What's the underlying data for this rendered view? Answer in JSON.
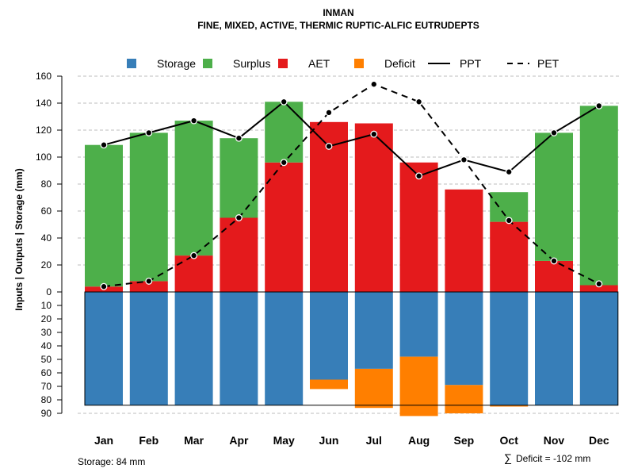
{
  "chart_data": {
    "type": "bar",
    "title": "INMAN",
    "subtitle": "FINE, MIXED, ACTIVE, THERMIC RUPTIC-ALFIC EUTRUDEPTS",
    "ylabel": "Inputs | Outputs | Storage    (mm)",
    "categories": [
      "Jan",
      "Feb",
      "Mar",
      "Apr",
      "May",
      "Jun",
      "Jul",
      "Aug",
      "Sep",
      "Oct",
      "Nov",
      "Dec"
    ],
    "ylim_top": [
      0,
      160
    ],
    "ylim_bottom": [
      0,
      90
    ],
    "yticks_top": [
      0,
      20,
      40,
      60,
      80,
      100,
      120,
      140,
      160
    ],
    "yticks_bottom": [
      0,
      10,
      20,
      30,
      40,
      50,
      60,
      70,
      80,
      90
    ],
    "legend": [
      {
        "key": "storage",
        "label": "Storage",
        "kind": "box",
        "color": "#377EB8"
      },
      {
        "key": "surplus",
        "label": "Surplus",
        "kind": "box",
        "color": "#4DAF4A"
      },
      {
        "key": "aet",
        "label": "AET",
        "kind": "box",
        "color": "#E41A1C"
      },
      {
        "key": "deficit",
        "label": "Deficit",
        "kind": "box",
        "color": "#FF7F00"
      },
      {
        "key": "ppt",
        "label": "PPT",
        "kind": "solid",
        "color": "#000000"
      },
      {
        "key": "pet",
        "label": "PET",
        "kind": "dashed",
        "color": "#000000"
      }
    ],
    "series": [
      {
        "name": "AET",
        "values": [
          4,
          8,
          27,
          55,
          96,
          126,
          125,
          96,
          76,
          52,
          23,
          5
        ]
      },
      {
        "name": "Surplus",
        "values": [
          105,
          110,
          100,
          59,
          45,
          0,
          0,
          0,
          0,
          22,
          95,
          133
        ]
      },
      {
        "name": "PPT",
        "values": [
          109,
          118,
          127,
          114,
          141,
          108,
          117,
          86,
          98,
          89,
          118,
          138
        ]
      },
      {
        "name": "PET",
        "values": [
          4,
          8,
          27,
          55,
          96,
          133,
          154,
          141,
          98,
          53,
          23,
          6
        ]
      },
      {
        "name": "Storage",
        "values": [
          84,
          84,
          84,
          84,
          84,
          65,
          57,
          48,
          69,
          84,
          84,
          84
        ]
      },
      {
        "name": "Deficit",
        "values": [
          0,
          0,
          0,
          0,
          0,
          7,
          29,
          44,
          21,
          1,
          0,
          0
        ]
      }
    ],
    "storage_capacity": 84,
    "notes": {
      "storage": "Storage: 84 mm",
      "deficit_symbol": "∑",
      "deficit": "Deficit = -102 mm"
    }
  }
}
